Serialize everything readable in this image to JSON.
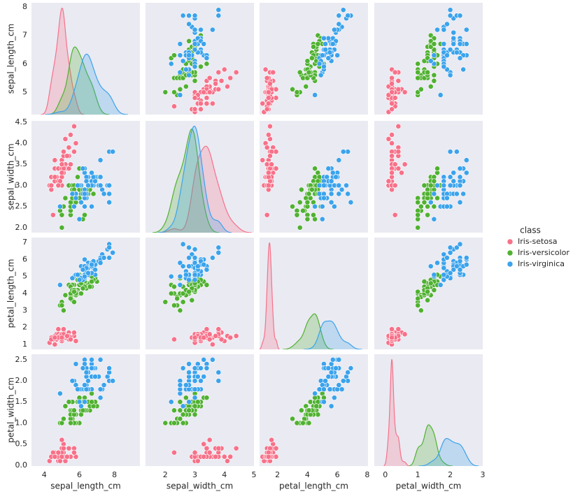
{
  "chart_data": {
    "type": "pairplot",
    "variables": [
      "sepal_length_cm",
      "sepal_width_cm",
      "petal_length_cm",
      "petal_width_cm"
    ],
    "axes": [
      {
        "xlim": [
          3.27,
          9.45
        ],
        "xticks": [
          4,
          6,
          8
        ],
        "ylim": [
          4.21,
          8.15
        ],
        "yticks": [
          5,
          6,
          7,
          8
        ]
      },
      {
        "xlim": [
          1.33,
          5.0
        ],
        "xticks": [
          2,
          3,
          4,
          5
        ],
        "ylim": [
          1.88,
          4.53
        ],
        "yticks": [
          {
            "value": 2,
            "label": "2.0"
          },
          2.5,
          {
            "value": 3,
            "label": "3.0"
          },
          3.5,
          {
            "value": 4,
            "label": "4.0"
          },
          4.5
        ]
      },
      {
        "xlim": [
          0.8,
          8.05
        ],
        "xticks": [
          2,
          4,
          6,
          8
        ],
        "ylim": [
          0.71,
          7.29
        ],
        "yticks": [
          1,
          2,
          3,
          4,
          5,
          6,
          7
        ]
      },
      {
        "xlim": [
          -0.34,
          3.0
        ],
        "xticks": [
          0,
          1,
          2,
          3
        ],
        "ylim": [
          -0.02,
          2.63
        ],
        "yticks": [
          {
            "value": 0,
            "label": "0.0"
          },
          0.5,
          {
            "value": 1,
            "label": "1.0"
          },
          1.5,
          {
            "value": 2,
            "label": "2.0"
          },
          2.5
        ]
      }
    ],
    "grid": false,
    "legend_title": "class",
    "series": [
      {
        "name": "Iris-setosa",
        "color": "#f77189",
        "values": [
          [
            5.1,
            3.5,
            1.4,
            0.2
          ],
          [
            4.9,
            3.0,
            1.4,
            0.2
          ],
          [
            4.7,
            3.2,
            1.3,
            0.2
          ],
          [
            4.6,
            3.1,
            1.5,
            0.2
          ],
          [
            5.0,
            3.6,
            1.4,
            0.2
          ],
          [
            5.4,
            3.9,
            1.7,
            0.4
          ],
          [
            4.6,
            3.4,
            1.4,
            0.3
          ],
          [
            5.0,
            3.4,
            1.5,
            0.2
          ],
          [
            4.4,
            2.9,
            1.4,
            0.2
          ],
          [
            4.9,
            3.1,
            1.5,
            0.1
          ],
          [
            5.4,
            3.7,
            1.5,
            0.2
          ],
          [
            4.8,
            3.4,
            1.6,
            0.2
          ],
          [
            4.8,
            3.0,
            1.4,
            0.1
          ],
          [
            4.3,
            3.0,
            1.1,
            0.1
          ],
          [
            5.8,
            4.0,
            1.2,
            0.2
          ],
          [
            5.7,
            4.4,
            1.5,
            0.4
          ],
          [
            5.4,
            3.9,
            1.3,
            0.4
          ],
          [
            5.1,
            3.5,
            1.4,
            0.3
          ],
          [
            5.7,
            3.8,
            1.7,
            0.3
          ],
          [
            5.1,
            3.8,
            1.5,
            0.3
          ],
          [
            5.4,
            3.4,
            1.7,
            0.2
          ],
          [
            5.1,
            3.7,
            1.5,
            0.4
          ],
          [
            4.6,
            3.6,
            1.0,
            0.2
          ],
          [
            5.1,
            3.3,
            1.7,
            0.5
          ],
          [
            4.8,
            3.4,
            1.9,
            0.2
          ],
          [
            5.0,
            3.0,
            1.6,
            0.2
          ],
          [
            5.0,
            3.4,
            1.6,
            0.4
          ],
          [
            5.2,
            3.5,
            1.5,
            0.2
          ],
          [
            5.2,
            3.4,
            1.4,
            0.2
          ],
          [
            4.7,
            3.2,
            1.6,
            0.2
          ],
          [
            4.8,
            3.1,
            1.6,
            0.2
          ],
          [
            5.4,
            3.4,
            1.5,
            0.4
          ],
          [
            5.2,
            4.1,
            1.5,
            0.1
          ],
          [
            5.5,
            4.2,
            1.4,
            0.2
          ],
          [
            4.9,
            3.1,
            1.5,
            0.1
          ],
          [
            5.0,
            3.2,
            1.2,
            0.2
          ],
          [
            5.5,
            3.5,
            1.3,
            0.2
          ],
          [
            4.9,
            3.1,
            1.5,
            0.1
          ],
          [
            4.4,
            3.0,
            1.3,
            0.2
          ],
          [
            5.1,
            3.4,
            1.5,
            0.2
          ],
          [
            5.0,
            3.5,
            1.3,
            0.3
          ],
          [
            4.5,
            2.3,
            1.3,
            0.3
          ],
          [
            4.4,
            3.2,
            1.3,
            0.2
          ],
          [
            5.0,
            3.5,
            1.6,
            0.6
          ],
          [
            5.1,
            3.8,
            1.9,
            0.4
          ],
          [
            4.8,
            3.0,
            1.4,
            0.3
          ],
          [
            5.1,
            3.8,
            1.6,
            0.2
          ],
          [
            4.6,
            3.2,
            1.4,
            0.2
          ],
          [
            5.3,
            3.7,
            1.5,
            0.2
          ],
          [
            5.0,
            3.3,
            1.4,
            0.2
          ]
        ]
      },
      {
        "name": "Iris-versicolor",
        "color": "#50b131",
        "values": [
          [
            7.0,
            3.2,
            4.7,
            1.4
          ],
          [
            6.4,
            3.2,
            4.5,
            1.5
          ],
          [
            6.9,
            3.1,
            4.9,
            1.5
          ],
          [
            5.5,
            2.3,
            4.0,
            1.3
          ],
          [
            6.5,
            2.8,
            4.6,
            1.5
          ],
          [
            5.7,
            2.8,
            4.5,
            1.3
          ],
          [
            6.3,
            3.3,
            4.7,
            1.6
          ],
          [
            4.9,
            2.4,
            3.3,
            1.0
          ],
          [
            6.6,
            2.9,
            4.6,
            1.3
          ],
          [
            5.2,
            2.7,
            3.9,
            1.4
          ],
          [
            5.0,
            2.0,
            3.5,
            1.0
          ],
          [
            5.9,
            3.0,
            4.2,
            1.5
          ],
          [
            6.0,
            2.2,
            4.0,
            1.0
          ],
          [
            6.1,
            2.9,
            4.7,
            1.4
          ],
          [
            5.6,
            2.9,
            3.6,
            1.3
          ],
          [
            6.7,
            3.1,
            4.4,
            1.4
          ],
          [
            5.6,
            3.0,
            4.5,
            1.5
          ],
          [
            5.8,
            2.7,
            4.1,
            1.0
          ],
          [
            6.2,
            2.2,
            4.5,
            1.5
          ],
          [
            5.6,
            2.5,
            3.9,
            1.1
          ],
          [
            5.9,
            3.2,
            4.8,
            1.8
          ],
          [
            6.1,
            2.8,
            4.0,
            1.3
          ],
          [
            6.3,
            2.5,
            4.9,
            1.5
          ],
          [
            6.1,
            2.8,
            4.7,
            1.2
          ],
          [
            6.4,
            2.9,
            4.3,
            1.3
          ],
          [
            6.6,
            3.0,
            4.4,
            1.4
          ],
          [
            6.8,
            2.8,
            4.8,
            1.4
          ],
          [
            6.7,
            3.0,
            5.0,
            1.7
          ],
          [
            6.0,
            2.9,
            4.5,
            1.5
          ],
          [
            5.7,
            2.6,
            3.5,
            1.0
          ],
          [
            5.5,
            2.4,
            3.8,
            1.1
          ],
          [
            5.5,
            2.4,
            3.7,
            1.0
          ],
          [
            5.8,
            2.7,
            3.9,
            1.2
          ],
          [
            6.0,
            2.7,
            5.1,
            1.6
          ],
          [
            5.4,
            3.0,
            4.5,
            1.5
          ],
          [
            6.0,
            3.4,
            4.5,
            1.6
          ],
          [
            6.7,
            3.1,
            4.7,
            1.5
          ],
          [
            6.3,
            2.3,
            4.4,
            1.3
          ],
          [
            5.6,
            3.0,
            4.1,
            1.3
          ],
          [
            5.5,
            2.5,
            4.0,
            1.3
          ],
          [
            5.5,
            2.6,
            4.4,
            1.2
          ],
          [
            6.1,
            3.0,
            4.6,
            1.4
          ],
          [
            5.8,
            2.6,
            4.0,
            1.2
          ],
          [
            5.0,
            2.3,
            3.3,
            1.0
          ],
          [
            5.6,
            2.7,
            4.2,
            1.3
          ],
          [
            5.7,
            3.0,
            4.2,
            1.2
          ],
          [
            5.7,
            2.9,
            4.2,
            1.3
          ],
          [
            6.2,
            2.9,
            4.3,
            1.3
          ],
          [
            5.1,
            2.5,
            3.0,
            1.1
          ],
          [
            5.7,
            2.8,
            4.1,
            1.3
          ]
        ]
      },
      {
        "name": "Iris-virginica",
        "color": "#3ba3ec",
        "values": [
          [
            6.3,
            3.3,
            6.0,
            2.5
          ],
          [
            5.8,
            2.7,
            5.1,
            1.9
          ],
          [
            7.1,
            3.0,
            5.9,
            2.1
          ],
          [
            6.3,
            2.9,
            5.6,
            1.8
          ],
          [
            6.5,
            3.0,
            5.8,
            2.2
          ],
          [
            7.6,
            3.0,
            6.6,
            2.1
          ],
          [
            4.9,
            2.5,
            4.5,
            1.7
          ],
          [
            7.3,
            2.9,
            6.3,
            1.8
          ],
          [
            6.7,
            2.5,
            5.8,
            1.8
          ],
          [
            7.2,
            3.6,
            6.1,
            2.5
          ],
          [
            6.5,
            3.2,
            5.1,
            2.0
          ],
          [
            6.4,
            2.7,
            5.3,
            1.9
          ],
          [
            6.8,
            3.0,
            5.5,
            2.1
          ],
          [
            5.7,
            2.5,
            5.0,
            2.0
          ],
          [
            5.8,
            2.8,
            5.1,
            2.4
          ],
          [
            6.4,
            3.2,
            5.3,
            2.3
          ],
          [
            6.5,
            3.0,
            5.5,
            1.8
          ],
          [
            7.7,
            3.8,
            6.7,
            2.2
          ],
          [
            7.7,
            2.6,
            6.9,
            2.3
          ],
          [
            6.0,
            2.2,
            5.0,
            1.5
          ],
          [
            6.9,
            3.2,
            5.7,
            2.3
          ],
          [
            5.6,
            2.8,
            4.9,
            2.0
          ],
          [
            7.7,
            2.8,
            6.7,
            2.0
          ],
          [
            6.3,
            2.7,
            4.9,
            1.8
          ],
          [
            6.7,
            3.3,
            5.7,
            2.1
          ],
          [
            7.2,
            3.2,
            6.0,
            1.8
          ],
          [
            6.2,
            2.8,
            4.8,
            1.8
          ],
          [
            6.1,
            3.0,
            4.9,
            1.8
          ],
          [
            6.4,
            2.8,
            5.6,
            2.1
          ],
          [
            7.2,
            3.0,
            5.8,
            1.6
          ],
          [
            7.4,
            2.8,
            6.1,
            1.9
          ],
          [
            7.9,
            3.8,
            6.4,
            2.0
          ],
          [
            6.4,
            2.8,
            5.6,
            2.2
          ],
          [
            6.3,
            2.8,
            5.1,
            1.5
          ],
          [
            6.1,
            2.6,
            5.6,
            1.4
          ],
          [
            7.7,
            3.0,
            6.1,
            2.3
          ],
          [
            6.3,
            3.4,
            5.6,
            2.4
          ],
          [
            6.4,
            3.1,
            5.5,
            1.8
          ],
          [
            6.0,
            3.0,
            4.8,
            1.8
          ],
          [
            6.9,
            3.1,
            5.4,
            2.1
          ],
          [
            6.7,
            3.1,
            5.6,
            2.4
          ],
          [
            6.9,
            3.1,
            5.1,
            2.3
          ],
          [
            5.8,
            2.7,
            5.1,
            1.9
          ],
          [
            6.8,
            3.2,
            5.9,
            2.3
          ],
          [
            6.7,
            3.3,
            5.7,
            2.5
          ],
          [
            6.7,
            3.0,
            5.2,
            2.3
          ],
          [
            6.3,
            2.5,
            5.0,
            1.9
          ],
          [
            6.5,
            3.0,
            5.2,
            2.0
          ],
          [
            6.2,
            3.4,
            5.4,
            2.3
          ],
          [
            5.9,
            3.0,
            5.1,
            1.8
          ]
        ]
      }
    ]
  }
}
